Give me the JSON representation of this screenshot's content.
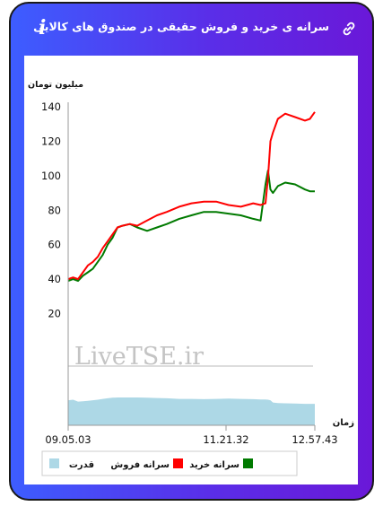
{
  "header": {
    "title": "سرانه ی خرید و فروش حقیقی در صندوق های کالایی",
    "info_label": "i",
    "info_icon": "info-icon",
    "link_icon": "link-icon"
  },
  "chart_data": {
    "type": "line",
    "ylabel": "میلیون تومان",
    "xlabel": "زمان",
    "ylim": [
      0,
      140
    ],
    "yticks": [
      "20",
      "40",
      "60",
      "80",
      "100",
      "120",
      "140"
    ],
    "xticks": [
      "09.05.03",
      "11.21.32",
      "12.57.43"
    ],
    "watermark": "LiveTSE.ir",
    "legend_placement": "bottom",
    "legend": [
      "سرانه خرید",
      "سرانه فروش",
      "قدرت"
    ],
    "colors": {
      "buy": "#007a00",
      "sell": "#ff0000",
      "power": "#add8e6"
    },
    "x": [
      0,
      0.02,
      0.04,
      0.06,
      0.08,
      0.1,
      0.12,
      0.14,
      0.16,
      0.18,
      0.2,
      0.22,
      0.25,
      0.28,
      0.32,
      0.36,
      0.4,
      0.45,
      0.5,
      0.55,
      0.6,
      0.65,
      0.7,
      0.75,
      0.78,
      0.8,
      0.81,
      0.82,
      0.83,
      0.85,
      0.88,
      0.92,
      0.96,
      0.98,
      1.0
    ],
    "series": [
      {
        "name": "سرانه فروش",
        "values": [
          40,
          41,
          40,
          44,
          48,
          50,
          53,
          58,
          62,
          66,
          70,
          71,
          72,
          71,
          74,
          77,
          79,
          82,
          84,
          85,
          85,
          83,
          82,
          84,
          83,
          84,
          99,
          120,
          125,
          133,
          136,
          134,
          132,
          133,
          137
        ]
      },
      {
        "name": "سرانه خرید",
        "values": [
          39,
          40,
          39,
          42,
          44,
          46,
          50,
          54,
          60,
          64,
          70,
          71,
          72,
          70,
          68,
          70,
          72,
          75,
          77,
          79,
          79,
          78,
          77,
          75,
          74,
          95,
          103,
          92,
          90,
          94,
          96,
          95,
          92,
          91,
          91
        ]
      },
      {
        "name": "قدرت",
        "values": [
          0.9,
          0.92,
          0.85,
          0.86,
          0.88,
          0.9,
          0.92,
          0.95,
          0.97,
          0.99,
          1.0,
          1.0,
          1.0,
          1.0,
          0.99,
          0.98,
          0.97,
          0.95,
          0.95,
          0.94,
          0.95,
          0.96,
          0.95,
          0.94,
          0.93,
          0.93,
          0.92,
          0.9,
          0.82,
          0.8,
          0.79,
          0.78,
          0.77,
          0.77,
          0.77
        ]
      }
    ]
  }
}
